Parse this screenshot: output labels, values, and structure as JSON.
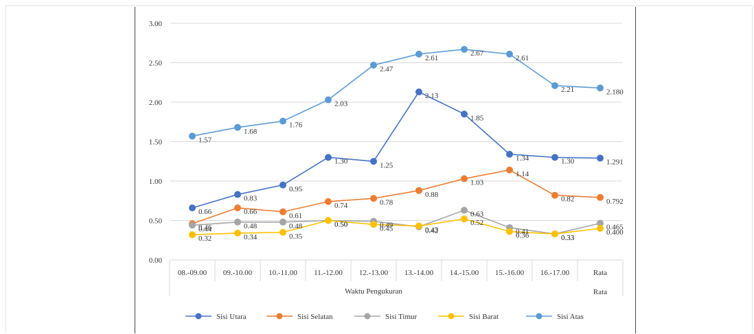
{
  "chart_data": {
    "type": "line",
    "xlabel": "Waktu Pengukuran",
    "ylabel": "",
    "ylim": [
      0,
      3
    ],
    "yticks": [
      "0.00",
      "0.50",
      "1.00",
      "1.50",
      "2.00",
      "2.50",
      "3.00"
    ],
    "categories": [
      "08.-09.00",
      "09.-10.00",
      "10.-11.00",
      "11.-12.00",
      "12.-13.00",
      "13.-14.00",
      "14.-15.00",
      "15.-16.00",
      "16.-17.00",
      "Rata Rata"
    ],
    "grid": true,
    "legend_position": "bottom",
    "series": [
      {
        "name": "Sisi Utara",
        "color": "#4472c4",
        "values": [
          0.66,
          0.83,
          0.95,
          1.3,
          1.25,
          2.13,
          1.85,
          1.34,
          1.3,
          1.291
        ],
        "labels": [
          "0.66",
          "0.83",
          "0.95",
          "1.30",
          "1.25",
          "2.13",
          "1.85",
          "1.34",
          "1.30",
          "1.291"
        ]
      },
      {
        "name": "Sisi Selatan",
        "color": "#ed7d31",
        "values": [
          0.46,
          0.66,
          0.61,
          0.74,
          0.78,
          0.88,
          1.03,
          1.14,
          0.82,
          0.792
        ],
        "labels": [
          "0.46",
          "0.66",
          "0.61",
          "0.74",
          "0.78",
          "0.88",
          "1.03",
          "1.14",
          "0.82",
          "0.792"
        ]
      },
      {
        "name": "Sisi Timur",
        "color": "#a5a5a5",
        "values": [
          0.44,
          0.48,
          0.48,
          0.5,
          0.49,
          0.42,
          0.63,
          0.41,
          0.33,
          0.465
        ],
        "labels": [
          "0.44",
          "0.48",
          "0.48",
          "0.50",
          "0.49",
          "0.42",
          "0.63",
          "0.41",
          "0.33",
          "0.465"
        ]
      },
      {
        "name": "Sisi Barat",
        "color": "#ffc000",
        "values": [
          0.32,
          0.34,
          0.35,
          0.5,
          0.45,
          0.43,
          0.52,
          0.36,
          0.33,
          0.4
        ],
        "labels": [
          "0.32",
          "0.34",
          "0.35",
          "0.50",
          "0.45",
          "0.43",
          "0.52",
          "0.36",
          "0.33",
          "0.400"
        ]
      },
      {
        "name": "Sisi Atas",
        "color": "#5b9bd5",
        "values": [
          1.57,
          1.68,
          1.76,
          2.03,
          2.47,
          2.61,
          2.67,
          2.61,
          2.21,
          2.18
        ],
        "labels": [
          "1.57",
          "1.68",
          "1.76",
          "2.03",
          "2.47",
          "2.61",
          "2.67",
          "2.61",
          "2.21",
          "2.180"
        ]
      }
    ]
  }
}
